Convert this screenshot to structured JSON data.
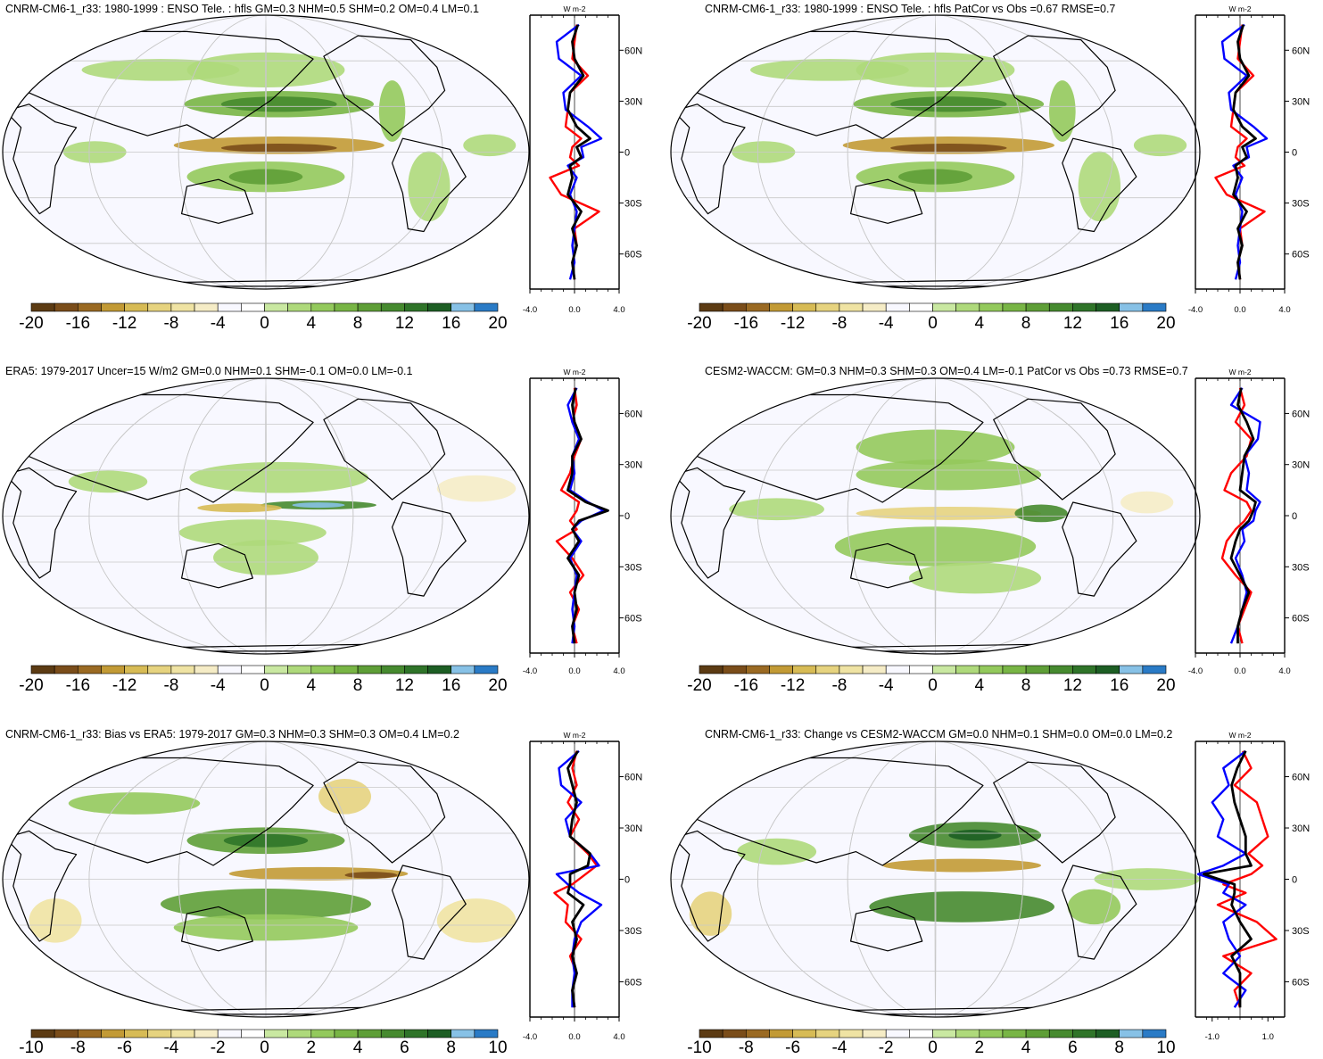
{
  "figure": {
    "variable": "hfls",
    "palette": [
      "#5c3b13",
      "#7a4d1a",
      "#9a6a23",
      "#c29a35",
      "#d7bb55",
      "#e6d37f",
      "#efe3a3",
      "#f5ecc6",
      "#f8f8ff",
      "#ffffff",
      "#c9e8a1",
      "#aed97b",
      "#93c95c",
      "#78b545",
      "#5e9e37",
      "#468a2f",
      "#2f7429",
      "#1d5e24",
      "#87c1e6",
      "#2a7bc6"
    ],
    "line_colors": {
      "red": "#ff0000",
      "blue": "#0000ff",
      "black": "#000000"
    }
  },
  "panels": [
    {
      "id": "model-mean",
      "title": "CNRM-CM6-1_r33: 1980-1999 : ENSO Tele. : hfls GM=0.3 NHM=0.5 SHM=0.2 OM=0.4 LM=0.1",
      "colorbar_labels": [
        "-20",
        "-16",
        "-12",
        "-8",
        "-4",
        "0",
        "4",
        "8",
        "12",
        "16",
        "20"
      ],
      "zonal": {
        "unit": "W m-2",
        "xlim": [
          -4,
          4
        ],
        "xtick_labels": [
          "-4.0",
          "0.0",
          "4.0"
        ],
        "ytick_labels": [
          "60N",
          "30N",
          "0",
          "30S",
          "60S"
        ]
      }
    },
    {
      "id": "model-patcor",
      "title": "CNRM-CM6-1_r33: 1980-1999 : ENSO Tele. : hfls PatCor vs Obs =0.67 RMSE=0.7",
      "colorbar_labels": [
        "-20",
        "-16",
        "-12",
        "-8",
        "-4",
        "0",
        "4",
        "8",
        "12",
        "16",
        "20"
      ],
      "zonal": {
        "unit": "W m-2",
        "xlim": [
          -4,
          4
        ],
        "xtick_labels": [
          "-4.0",
          "0.0",
          "4.0"
        ],
        "ytick_labels": [
          "60N",
          "30N",
          "0",
          "30S",
          "60S"
        ]
      }
    },
    {
      "id": "era5",
      "title": "ERA5: 1979-2017 Uncer=15 W/m2 GM=0.0 NHM=0.1 SHM=-0.1 OM=0.0 LM=-0.1",
      "colorbar_labels": [
        "-20",
        "-16",
        "-12",
        "-8",
        "-4",
        "0",
        "4",
        "8",
        "12",
        "16",
        "20"
      ],
      "zonal": {
        "unit": "W m-2",
        "xlim": [
          -4,
          4
        ],
        "xtick_labels": [
          "-4.0",
          "0.0",
          "4.0"
        ],
        "ytick_labels": [
          "60N",
          "30N",
          "0",
          "30S",
          "60S"
        ]
      }
    },
    {
      "id": "cesm2",
      "title": "CESM2-WACCM: GM=0.3 NHM=0.3 SHM=0.3 OM=0.4 LM=-0.1 PatCor vs Obs =0.73 RMSE=0.7",
      "colorbar_labels": [
        "-20",
        "-16",
        "-12",
        "-8",
        "-4",
        "0",
        "4",
        "8",
        "12",
        "16",
        "20"
      ],
      "zonal": {
        "unit": "W m-2",
        "xlim": [
          -4,
          4
        ],
        "xtick_labels": [
          "-4.0",
          "0.0",
          "4.0"
        ],
        "ytick_labels": [
          "60N",
          "30N",
          "0",
          "30S",
          "60S"
        ]
      }
    },
    {
      "id": "bias",
      "title": "CNRM-CM6-1_r33: Bias vs ERA5: 1979-2017 GM=0.3 NHM=0.3 SHM=0.3 OM=0.4 LM=0.2",
      "colorbar_labels": [
        "-10",
        "-8",
        "-6",
        "-4",
        "-2",
        "0",
        "2",
        "4",
        "6",
        "8",
        "10"
      ],
      "zonal": {
        "unit": "W m-2",
        "xlim": [
          -4,
          4
        ],
        "xtick_labels": [
          "-4.0",
          "0.0",
          "4.0"
        ],
        "ytick_labels": [
          "60N",
          "30N",
          "0",
          "30S",
          "60S"
        ]
      }
    },
    {
      "id": "change",
      "title": "CNRM-CM6-1_r33: Change vs CESM2-WACCM GM=0.0 NHM=0.1 SHM=0.0 OM=0.0 LM=0.2",
      "colorbar_labels": [
        "-10",
        "-8",
        "-6",
        "-4",
        "-2",
        "0",
        "2",
        "4",
        "6",
        "8",
        "10"
      ],
      "zonal": {
        "unit": "W m-2",
        "xlim": [
          -1.6,
          1.6
        ],
        "xtick_labels": [
          "-1.0",
          "1.0"
        ],
        "ytick_labels": [
          "60N",
          "30N",
          "0",
          "30S",
          "60S"
        ]
      }
    }
  ],
  "chart_data": [
    {
      "type": "line",
      "panel": "model-mean",
      "y_label_ticks": [
        60,
        30,
        0,
        -30,
        -60
      ],
      "lat": [
        75,
        65,
        55,
        45,
        35,
        25,
        15,
        8,
        3,
        -3,
        -8,
        -15,
        -25,
        -35,
        -45,
        -55,
        -65,
        -75
      ],
      "series": [
        {
          "color": "red",
          "values": [
            0.2,
            0,
            -0.2,
            1.2,
            -0.4,
            -0.6,
            -0.8,
            0.6,
            -0.2,
            -0.4,
            0.4,
            -2.2,
            -1.2,
            2.2,
            0,
            0.2,
            -0.2,
            0
          ]
        },
        {
          "color": "blue",
          "values": [
            0.4,
            -1.6,
            -1.4,
            0.6,
            -1,
            -0.8,
            1.2,
            2.4,
            0.6,
            0.8,
            -0.6,
            0.2,
            -0.4,
            0.2,
            0,
            -0.2,
            0,
            -0.4
          ]
        },
        {
          "color": "black",
          "values": [
            0.3,
            -0.2,
            0,
            0.8,
            -0.4,
            -0.6,
            0.2,
            1.4,
            0.2,
            0.6,
            -0.4,
            -0.2,
            -0.6,
            0.6,
            -0.2,
            0.2,
            -0.2,
            0
          ]
        }
      ]
    },
    {
      "type": "line",
      "panel": "model-patcor",
      "y_label_ticks": [
        60,
        30,
        0,
        -30,
        -60
      ],
      "lat": [
        75,
        65,
        55,
        45,
        35,
        25,
        15,
        8,
        3,
        -3,
        -8,
        -15,
        -25,
        -35,
        -45,
        -55,
        -65,
        -75
      ],
      "series": [
        {
          "color": "red",
          "values": [
            0.2,
            0,
            -0.2,
            1.2,
            -0.4,
            -0.6,
            -0.8,
            0.6,
            -0.2,
            -0.4,
            0.4,
            -2.2,
            -1.2,
            2.2,
            0,
            0.2,
            -0.2,
            0
          ]
        },
        {
          "color": "blue",
          "values": [
            0.4,
            -1.6,
            -1.4,
            0.6,
            -1,
            -0.8,
            1.2,
            2.4,
            0.6,
            0.8,
            -0.6,
            0.2,
            -0.4,
            0.2,
            0,
            -0.2,
            0,
            -0.4
          ]
        },
        {
          "color": "black",
          "values": [
            0.3,
            -0.2,
            0,
            0.8,
            -0.4,
            -0.6,
            0.2,
            1.4,
            0.2,
            0.6,
            -0.4,
            -0.2,
            -0.6,
            0.6,
            -0.2,
            0.2,
            -0.2,
            0
          ]
        }
      ]
    },
    {
      "type": "line",
      "panel": "era5",
      "y_label_ticks": [
        60,
        30,
        0,
        -30,
        -60
      ],
      "lat": [
        75,
        65,
        55,
        45,
        35,
        25,
        15,
        8,
        3,
        -3,
        -8,
        -15,
        -25,
        -35,
        -45,
        -55,
        -65,
        -75
      ],
      "series": [
        {
          "color": "red",
          "values": [
            0,
            0.2,
            -0.2,
            0.6,
            0,
            -0.4,
            -1.2,
            0.4,
            0.2,
            -0.4,
            0.2,
            -1.6,
            -0.2,
            0.8,
            -0.4,
            0.4,
            -0.2,
            0.2
          ]
        },
        {
          "color": "blue",
          "values": [
            0.2,
            -0.6,
            -0.2,
            0.4,
            -0.2,
            0,
            -0.4,
            1.2,
            2.6,
            0.6,
            -0.2,
            0.6,
            -0.4,
            0.2,
            0,
            -0.2,
            0,
            -0.2
          ]
        },
        {
          "color": "black",
          "values": [
            0.1,
            -0.2,
            0,
            0.6,
            -0.2,
            -0.2,
            -0.6,
            1,
            3,
            0.4,
            -0.2,
            0.4,
            -0.6,
            0.4,
            0,
            0.2,
            -0.2,
            0
          ]
        }
      ]
    },
    {
      "type": "line",
      "panel": "cesm2",
      "y_label_ticks": [
        60,
        30,
        0,
        -30,
        -60
      ],
      "lat": [
        75,
        65,
        55,
        45,
        35,
        25,
        15,
        8,
        3,
        -3,
        -8,
        -15,
        -25,
        -35,
        -45,
        -55,
        -65,
        -75
      ],
      "series": [
        {
          "color": "red",
          "values": [
            0,
            0.4,
            -0.4,
            1,
            0.6,
            -0.8,
            -1.4,
            0.6,
            1,
            0.4,
            -0.4,
            -1.2,
            -1.6,
            -0.4,
            1,
            0.4,
            -0.2,
            0.2
          ]
        },
        {
          "color": "blue",
          "values": [
            0.2,
            -0.8,
            1.8,
            1.6,
            0.4,
            0.8,
            0.6,
            1.8,
            1.4,
            1.2,
            0.2,
            0.4,
            -0.4,
            0.2,
            0.6,
            0.2,
            -0.2,
            -0.8
          ]
        },
        {
          "color": "black",
          "values": [
            0.1,
            -0.2,
            0.6,
            1.2,
            0.4,
            0.2,
            0,
            1.4,
            1.2,
            0.8,
            0,
            -0.4,
            -0.8,
            0,
            0.8,
            0.2,
            -0.2,
            -0.2
          ]
        }
      ]
    },
    {
      "type": "line",
      "panel": "bias",
      "y_label_ticks": [
        60,
        30,
        0,
        -30,
        -60
      ],
      "lat": [
        75,
        65,
        55,
        45,
        35,
        25,
        15,
        8,
        3,
        -3,
        -8,
        -15,
        -25,
        -35,
        -45,
        -55,
        -65,
        -75
      ],
      "series": [
        {
          "color": "red",
          "values": [
            0.2,
            -0.2,
            0.2,
            -0.6,
            0.4,
            -0.4,
            1.2,
            2,
            1,
            -0.2,
            -1.8,
            -0.6,
            -0.8,
            0.6,
            -0.4,
            0.2,
            -0.2,
            0
          ]
        },
        {
          "color": "blue",
          "values": [
            0.4,
            -1.4,
            -1.2,
            0.6,
            -0.8,
            -0.4,
            1.4,
            2.2,
            -1.6,
            -0.6,
            0.4,
            2.4,
            0.6,
            0,
            -0.2,
            0,
            -0.2,
            -0.2
          ]
        },
        {
          "color": "black",
          "values": [
            0.3,
            -0.6,
            -0.2,
            0.2,
            -0.2,
            -0.4,
            1.4,
            1.2,
            -0.4,
            -0.4,
            -0.6,
            0.8,
            -0.2,
            0.2,
            -0.2,
            0.2,
            -0.2,
            0
          ]
        }
      ]
    },
    {
      "type": "line",
      "panel": "change",
      "y_label_ticks": [
        60,
        30,
        0,
        -30,
        -60
      ],
      "lat": [
        75,
        65,
        55,
        45,
        35,
        25,
        15,
        8,
        3,
        -3,
        -8,
        -15,
        -25,
        -35,
        -45,
        -55,
        -65,
        -75
      ],
      "series": [
        {
          "color": "red",
          "values": [
            0.1,
            0.4,
            -0.2,
            0.6,
            0.8,
            1,
            0.3,
            0.8,
            0.4,
            -0.6,
            0.2,
            -0.8,
            0.6,
            1.3,
            -0.6,
            0.4,
            -0.2,
            0
          ]
        },
        {
          "color": "blue",
          "values": [
            0.2,
            -0.6,
            -0.4,
            -1,
            -0.6,
            -0.8,
            0.2,
            -0.6,
            -1.5,
            -0.4,
            -0.6,
            0.2,
            -0.6,
            -0.4,
            0,
            -0.6,
            0.2,
            -0.2
          ]
        },
        {
          "color": "black",
          "values": [
            0.2,
            -0.1,
            -0.3,
            -0.2,
            0,
            0.2,
            0.2,
            0.4,
            -1.3,
            -0.2,
            -0.2,
            -0.3,
            0,
            0.4,
            -0.3,
            0,
            0,
            0
          ]
        }
      ]
    }
  ]
}
